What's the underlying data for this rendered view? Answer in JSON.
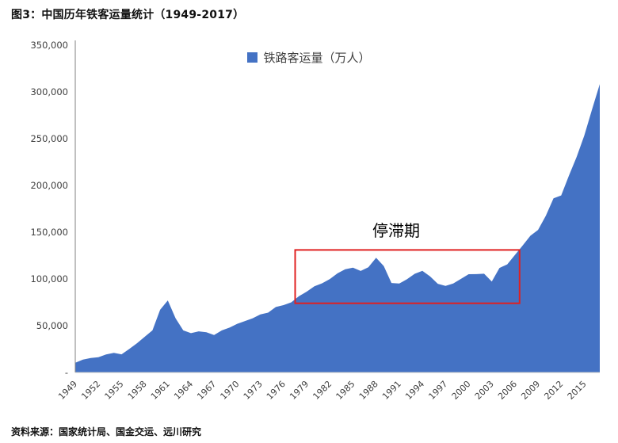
{
  "title": "图3：中国历年铁客运量统计（1949-2017）",
  "source": "资料来源：国家统计局、国金交运、远川研究",
  "legend": {
    "label": "铁路客运量（万人）",
    "color": "#4472C4"
  },
  "annotation": {
    "label": "停滞期",
    "x_start_year": 1977.5,
    "x_end_year": 2006.6,
    "y_low": 74000,
    "y_high": 131000,
    "box_color": "#e02020",
    "label_color": "#000000"
  },
  "chart_data": {
    "type": "area",
    "title": "图3：中国历年铁客运量统计（1949-2017）",
    "series_name": "铁路客运量（万人）",
    "fill_color": "#4472C4",
    "grid": false,
    "legend_position": "top-center",
    "ylim": [
      0,
      350000
    ],
    "y_ticks": [
      0,
      50000,
      100000,
      150000,
      200000,
      250000,
      300000,
      350000
    ],
    "y_tick_labels": [
      "-",
      "50,000",
      "100,000",
      "150,000",
      "200,000",
      "250,000",
      "300,000",
      "350,000"
    ],
    "x_tick_years": [
      1949,
      1952,
      1955,
      1958,
      1961,
      1964,
      1967,
      1970,
      1973,
      1976,
      1979,
      1982,
      1985,
      1988,
      1991,
      1994,
      1997,
      2000,
      2003,
      2006,
      2009,
      2012,
      2015
    ],
    "x": [
      1949,
      1950,
      1951,
      1952,
      1953,
      1954,
      1955,
      1956,
      1957,
      1958,
      1959,
      1960,
      1961,
      1962,
      1963,
      1964,
      1965,
      1966,
      1967,
      1968,
      1969,
      1970,
      1971,
      1972,
      1973,
      1974,
      1975,
      1976,
      1977,
      1978,
      1979,
      1980,
      1981,
      1982,
      1983,
      1984,
      1985,
      1986,
      1987,
      1988,
      1989,
      1990,
      1991,
      1992,
      1993,
      1994,
      1995,
      1996,
      1997,
      1998,
      1999,
      2000,
      2001,
      2002,
      2003,
      2004,
      2005,
      2006,
      2007,
      2008,
      2009,
      2010,
      2011,
      2012,
      2013,
      2014,
      2015,
      2016,
      2017
    ],
    "values": [
      10300,
      13800,
      15500,
      16350,
      19200,
      21000,
      19400,
      25100,
      31300,
      38100,
      45000,
      67000,
      77000,
      58000,
      45000,
      42000,
      44000,
      43000,
      40000,
      45000,
      48000,
      52000,
      55000,
      58000,
      62000,
      64000,
      70000,
      72000,
      75000,
      81500,
      86400,
      92200,
      95300,
      99900,
      106000,
      110400,
      112100,
      108600,
      112500,
      122600,
      113800,
      95700,
      95100,
      99700,
      105500,
      108700,
      102700,
      94800,
      92600,
      95100,
      100100,
      105100,
      105200,
      105600,
      97300,
      111800,
      115600,
      125700,
      135700,
      146200,
      152500,
      167600,
      186200,
      189300,
      210600,
      230500,
      253500,
      281400,
      308400
    ],
    "axis_color": "#808080",
    "tick_label_color": "#404040"
  }
}
